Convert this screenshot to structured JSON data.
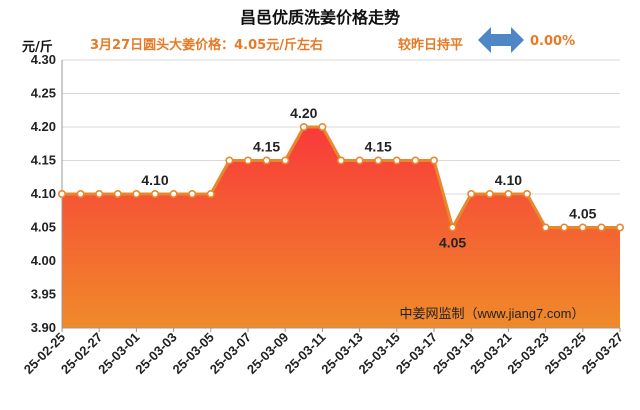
{
  "header": {
    "title": "昌邑优质洗姜价格走势",
    "unit": "元/斤",
    "price_note": "3月27日圆头大姜价格：4.05元/斤左右",
    "compare_label": "较昨日持平",
    "change_pct": "0.00%",
    "arrow_icon": "double-arrow-icon"
  },
  "watermark": "中姜网监制（www.jiang7.com）",
  "colors": {
    "line": "#e8882c",
    "area_top": "#f83a3a",
    "area_bottom": "#f08a2a",
    "arrow": "#4f86c6",
    "accent_text": "#e67a26",
    "grid": "#d9d9d9"
  },
  "chart_data": {
    "type": "area",
    "title": "昌邑优质洗姜价格走势",
    "ylabel": "元/斤",
    "ylim": [
      3.9,
      4.3
    ],
    "yticks": [
      "4.30",
      "4.25",
      "4.20",
      "4.15",
      "4.10",
      "4.05",
      "4.00",
      "3.95",
      "3.90"
    ],
    "x": [
      "25-02-25",
      "25-02-26",
      "25-02-27",
      "25-02-28",
      "25-03-01",
      "25-03-02",
      "25-03-03",
      "25-03-04",
      "25-03-05",
      "25-03-06",
      "25-03-07",
      "25-03-08",
      "25-03-09",
      "25-03-10",
      "25-03-11",
      "25-03-12",
      "25-03-13",
      "25-03-14",
      "25-03-15",
      "25-03-16",
      "25-03-17",
      "25-03-18",
      "25-03-19",
      "25-03-20",
      "25-03-21",
      "25-03-22",
      "25-03-23",
      "25-03-24",
      "25-03-25",
      "25-03-26",
      "25-03-27"
    ],
    "xticks": [
      "25-02-25",
      "25-02-27",
      "25-03-01",
      "25-03-03",
      "25-03-05",
      "25-03-07",
      "25-03-09",
      "25-03-11",
      "25-03-13",
      "25-03-15",
      "25-03-17",
      "25-03-19",
      "25-03-21",
      "25-03-23",
      "25-03-25",
      "25-03-27"
    ],
    "values": [
      4.1,
      4.1,
      4.1,
      4.1,
      4.1,
      4.1,
      4.1,
      4.1,
      4.1,
      4.15,
      4.15,
      4.15,
      4.15,
      4.2,
      4.2,
      4.15,
      4.15,
      4.15,
      4.15,
      4.15,
      4.15,
      4.05,
      4.1,
      4.1,
      4.1,
      4.1,
      4.05,
      4.05,
      4.05,
      4.05,
      4.05
    ],
    "data_labels": [
      {
        "index": 5,
        "text": "4.10"
      },
      {
        "index": 11,
        "text": "4.15"
      },
      {
        "index": 13,
        "text": "4.20"
      },
      {
        "index": 17,
        "text": "4.15"
      },
      {
        "index": 21,
        "text": "4.05"
      },
      {
        "index": 24,
        "text": "4.10"
      },
      {
        "index": 28,
        "text": "4.05"
      }
    ],
    "grid": "horizontal"
  }
}
